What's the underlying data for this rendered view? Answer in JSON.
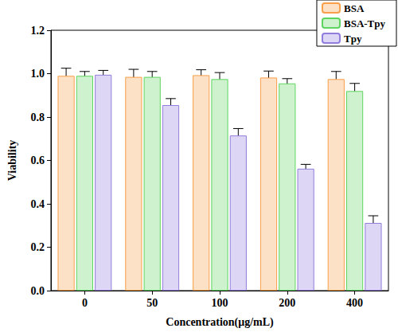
{
  "chart_data": {
    "type": "bar",
    "x_label": "Concentration(μg/mL)",
    "y_label": "Viability",
    "categories": [
      "0",
      "50",
      "100",
      "200",
      "400"
    ],
    "series": [
      {
        "name": "BSA",
        "color": "#fde1c6",
        "values": [
          0.99,
          0.985,
          0.993,
          0.982,
          0.975
        ],
        "errors": [
          0.035,
          0.035,
          0.025,
          0.03,
          0.035
        ]
      },
      {
        "name": "BSA-Tpy",
        "color": "#cdf2cd",
        "values": [
          0.99,
          0.985,
          0.975,
          0.955,
          0.92
        ],
        "errors": [
          0.02,
          0.025,
          0.03,
          0.022,
          0.035
        ]
      },
      {
        "name": "Tpy",
        "color": "#ddd6f4",
        "values": [
          0.995,
          0.855,
          0.715,
          0.562,
          0.312
        ],
        "errors": [
          0.02,
          0.03,
          0.032,
          0.02,
          0.033
        ]
      }
    ],
    "ylim": [
      0,
      1.2
    ],
    "yticks": [
      {
        "value": 0,
        "label": "0.0"
      },
      {
        "value": 0.2,
        "label": "0.2"
      },
      {
        "value": 0.4,
        "label": "0.4"
      },
      {
        "value": 0.6,
        "label": "0.6"
      },
      {
        "value": 0.8,
        "label": "0.8"
      },
      {
        "value": 1.0,
        "label": "1.0"
      },
      {
        "value": 1.2,
        "label": "1.2"
      }
    ],
    "grid": false,
    "legend": "top-right"
  }
}
